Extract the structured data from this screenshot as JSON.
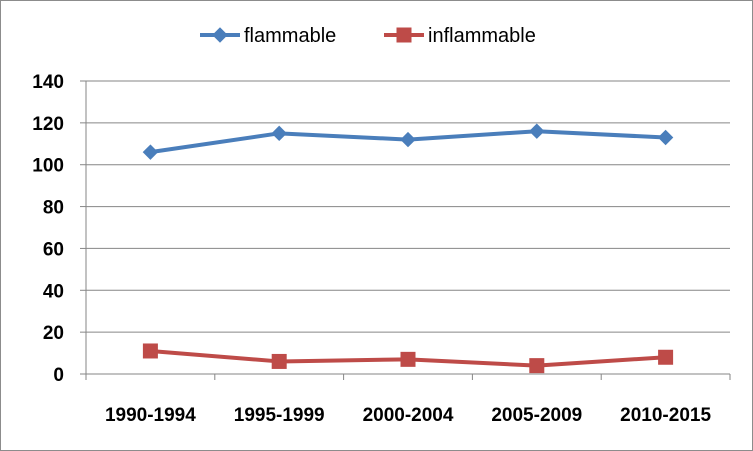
{
  "chart_data": {
    "type": "line",
    "title": "",
    "xlabel": "",
    "ylabel": "",
    "categories": [
      "1990-1994",
      "1995-1999",
      "2000-2004",
      "2005-2009",
      "2010-2015"
    ],
    "ylim": [
      0,
      140
    ],
    "yticks": [
      0,
      20,
      40,
      60,
      80,
      100,
      120,
      140
    ],
    "grid": true,
    "legend_position": "top",
    "series": [
      {
        "name": "flammable",
        "values": [
          106,
          115,
          112,
          116,
          113
        ],
        "color": "#4a7ebb",
        "marker": "diamond"
      },
      {
        "name": "inflammable",
        "values": [
          11,
          6,
          7,
          4,
          8
        ],
        "color": "#be4b48",
        "marker": "square"
      }
    ]
  }
}
